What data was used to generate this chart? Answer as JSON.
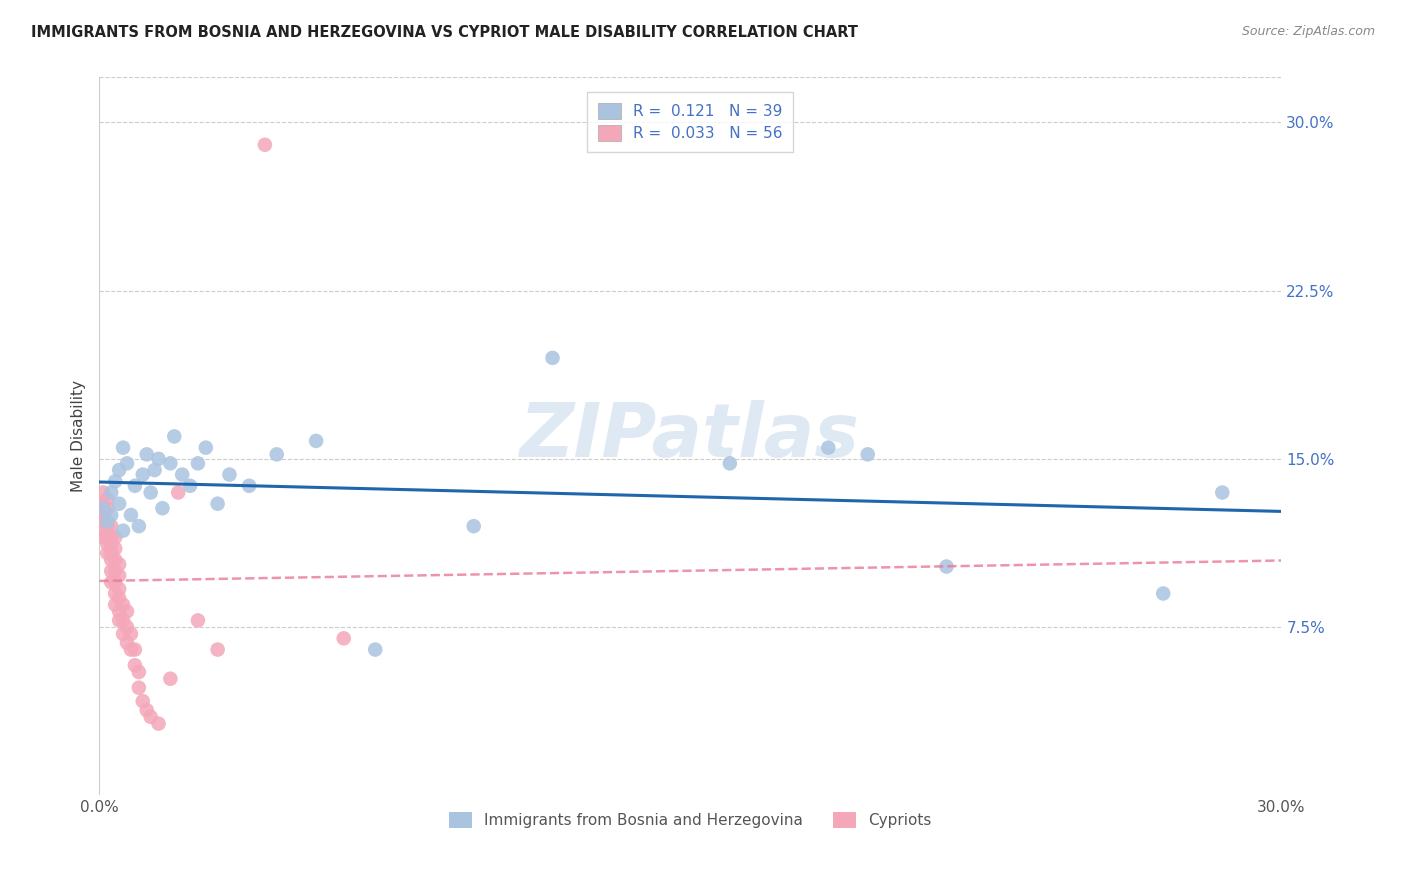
{
  "title": "IMMIGRANTS FROM BOSNIA AND HERZEGOVINA VS CYPRIOT MALE DISABILITY CORRELATION CHART",
  "source": "Source: ZipAtlas.com",
  "ylabel": "Male Disability",
  "xmin": 0.0,
  "xmax": 0.3,
  "ymin": 0.0,
  "ymax": 0.32,
  "yticks": [
    0.075,
    0.15,
    0.225,
    0.3
  ],
  "ytick_labels": [
    "7.5%",
    "15.0%",
    "22.5%",
    "30.0%"
  ],
  "watermark": "ZIPatlas",
  "blue_R": 0.121,
  "blue_N": 39,
  "pink_R": 0.033,
  "pink_N": 56,
  "blue_color": "#aac4e0",
  "pink_color": "#f4a7b9",
  "blue_line_color": "#2166ac",
  "pink_line_color": "#e87a95",
  "blue_scatter_x": [
    0.001,
    0.002,
    0.003,
    0.003,
    0.004,
    0.005,
    0.005,
    0.006,
    0.006,
    0.007,
    0.008,
    0.009,
    0.01,
    0.011,
    0.012,
    0.013,
    0.014,
    0.015,
    0.016,
    0.018,
    0.019,
    0.021,
    0.023,
    0.025,
    0.027,
    0.03,
    0.033,
    0.038,
    0.045,
    0.055,
    0.07,
    0.095,
    0.115,
    0.16,
    0.185,
    0.195,
    0.215,
    0.27,
    0.285
  ],
  "blue_scatter_y": [
    0.128,
    0.122,
    0.135,
    0.125,
    0.14,
    0.13,
    0.145,
    0.118,
    0.155,
    0.148,
    0.125,
    0.138,
    0.12,
    0.143,
    0.152,
    0.135,
    0.145,
    0.15,
    0.128,
    0.148,
    0.16,
    0.143,
    0.138,
    0.148,
    0.155,
    0.13,
    0.143,
    0.138,
    0.152,
    0.158,
    0.065,
    0.12,
    0.195,
    0.148,
    0.155,
    0.152,
    0.102,
    0.09,
    0.135
  ],
  "pink_scatter_x": [
    0.001,
    0.001,
    0.001,
    0.001,
    0.001,
    0.001,
    0.001,
    0.002,
    0.002,
    0.002,
    0.002,
    0.002,
    0.002,
    0.002,
    0.003,
    0.003,
    0.003,
    0.003,
    0.003,
    0.003,
    0.003,
    0.004,
    0.004,
    0.004,
    0.004,
    0.004,
    0.004,
    0.004,
    0.005,
    0.005,
    0.005,
    0.005,
    0.005,
    0.005,
    0.006,
    0.006,
    0.006,
    0.007,
    0.007,
    0.007,
    0.008,
    0.008,
    0.009,
    0.009,
    0.01,
    0.01,
    0.011,
    0.012,
    0.013,
    0.015,
    0.018,
    0.02,
    0.025,
    0.03,
    0.042,
    0.062
  ],
  "pink_scatter_y": [
    0.115,
    0.118,
    0.122,
    0.125,
    0.128,
    0.13,
    0.135,
    0.108,
    0.112,
    0.115,
    0.12,
    0.122,
    0.128,
    0.132,
    0.095,
    0.1,
    0.105,
    0.108,
    0.112,
    0.115,
    0.12,
    0.085,
    0.09,
    0.095,
    0.1,
    0.105,
    0.11,
    0.115,
    0.078,
    0.082,
    0.088,
    0.092,
    0.098,
    0.103,
    0.072,
    0.078,
    0.085,
    0.068,
    0.075,
    0.082,
    0.065,
    0.072,
    0.058,
    0.065,
    0.048,
    0.055,
    0.042,
    0.038,
    0.035,
    0.032,
    0.052,
    0.135,
    0.078,
    0.065,
    0.29,
    0.07
  ]
}
